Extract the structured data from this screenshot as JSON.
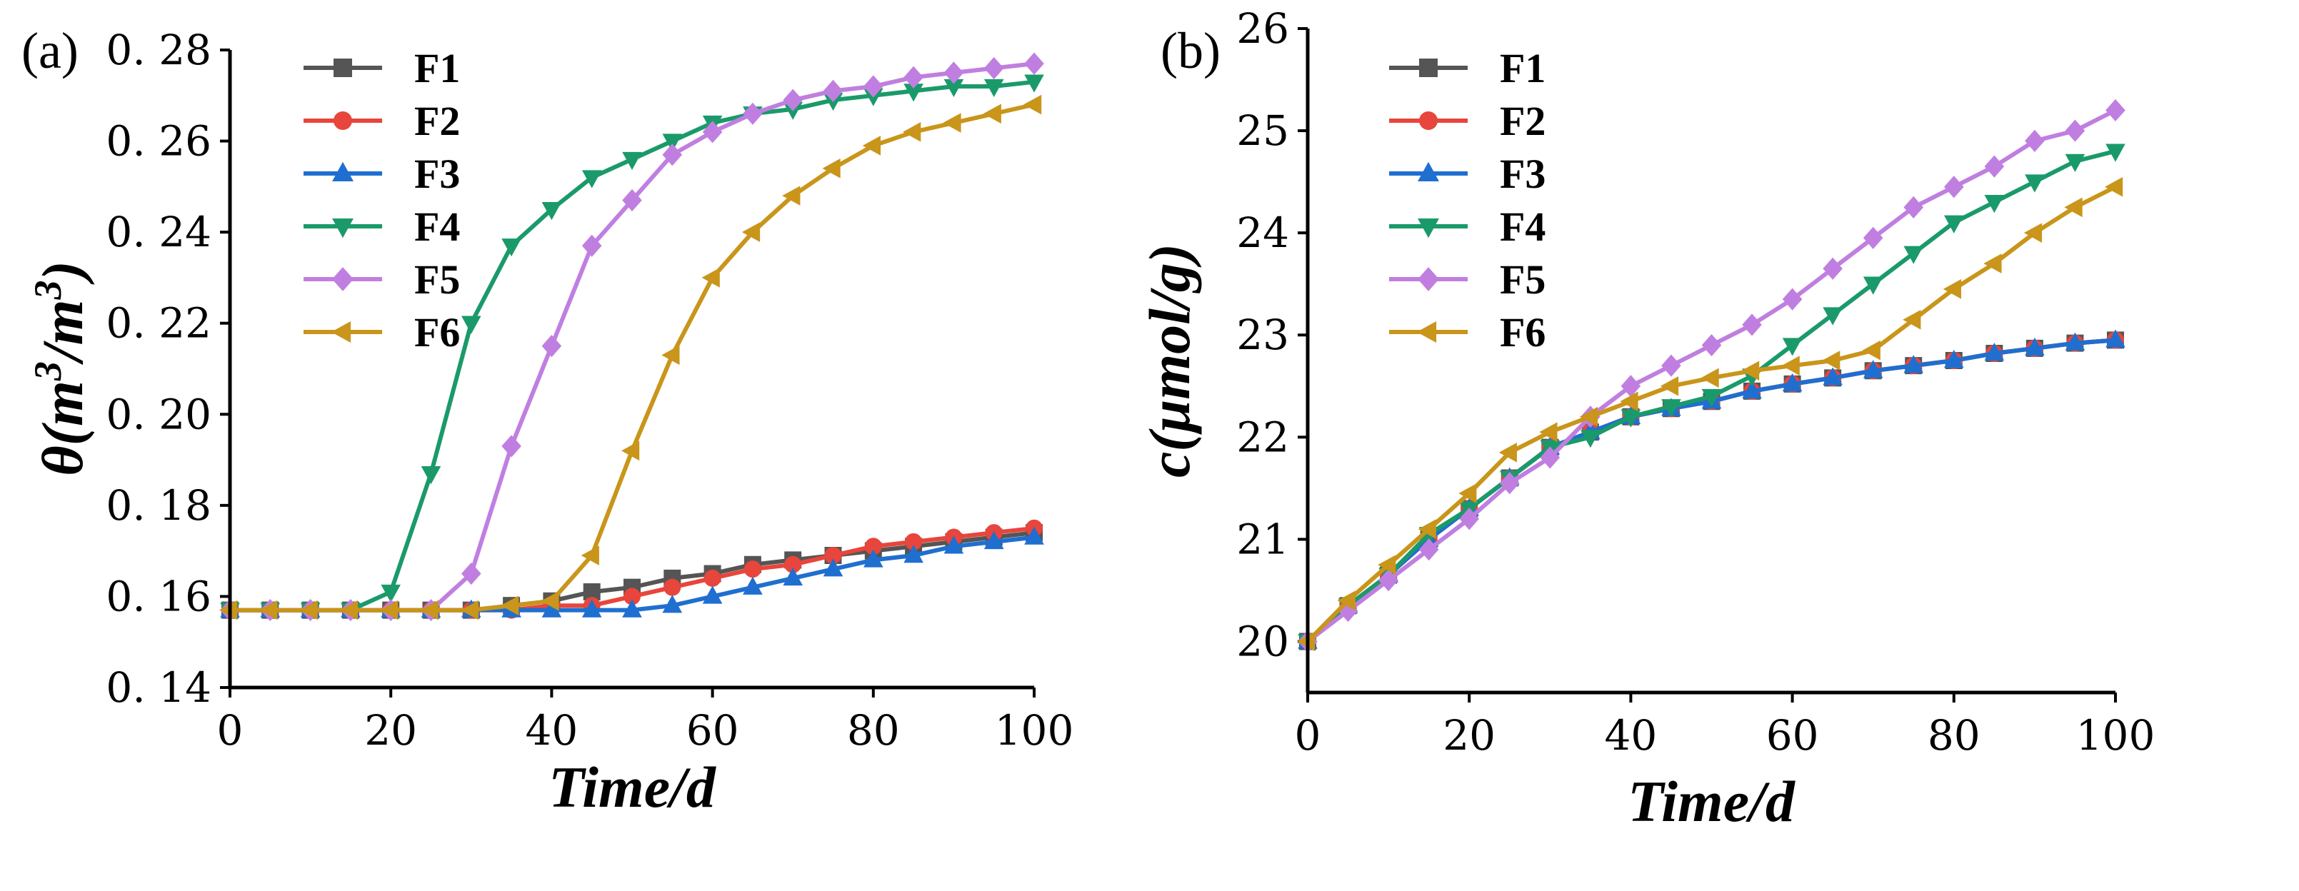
{
  "chart_data": [
    {
      "type": "line",
      "panel_label": "(a)",
      "xlabel": "Time/d",
      "ylabel_base": "θ(m",
      "ylabel_sup1": "3",
      "ylabel_mid": "/m",
      "ylabel_sup2": "3",
      "ylabel_end": ")",
      "xlim": [
        0,
        100
      ],
      "ylim": [
        0.14,
        0.28
      ],
      "xticks": [
        0,
        20,
        40,
        60,
        80,
        100
      ],
      "xtick_labels": [
        "0",
        "20",
        "40",
        "60",
        "80",
        "100"
      ],
      "yticks": [
        0.14,
        0.16,
        0.18,
        0.2,
        0.22,
        0.24,
        0.26,
        0.28
      ],
      "ytick_labels": [
        "0. 14",
        "0. 16",
        "0. 18",
        "0. 20",
        "0. 22",
        "0. 24",
        "0. 26",
        "0. 28"
      ],
      "legend_position": "top-left",
      "x": [
        0,
        5,
        10,
        15,
        20,
        25,
        30,
        35,
        40,
        45,
        50,
        55,
        60,
        65,
        70,
        75,
        80,
        85,
        90,
        95,
        100
      ],
      "series": [
        {
          "name": "F1",
          "color": "#555555",
          "marker": "square",
          "values": [
            0.157,
            0.157,
            0.157,
            0.157,
            0.157,
            0.157,
            0.157,
            0.158,
            0.159,
            0.161,
            0.162,
            0.164,
            0.165,
            0.167,
            0.168,
            0.169,
            0.17,
            0.171,
            0.172,
            0.173,
            0.174
          ]
        },
        {
          "name": "F2",
          "color": "#e8453c",
          "marker": "circle",
          "values": [
            0.157,
            0.157,
            0.157,
            0.157,
            0.157,
            0.157,
            0.157,
            0.157,
            0.158,
            0.158,
            0.16,
            0.162,
            0.164,
            0.166,
            0.167,
            0.169,
            0.171,
            0.172,
            0.173,
            0.174,
            0.175
          ]
        },
        {
          "name": "F3",
          "color": "#1f6fd0",
          "marker": "triangle-up",
          "values": [
            0.157,
            0.157,
            0.157,
            0.157,
            0.157,
            0.157,
            0.157,
            0.157,
            0.157,
            0.157,
            0.157,
            0.158,
            0.16,
            0.162,
            0.164,
            0.166,
            0.168,
            0.169,
            0.171,
            0.172,
            0.173
          ]
        },
        {
          "name": "F4",
          "color": "#1a9a6a",
          "marker": "triangle-down",
          "values": [
            0.157,
            0.157,
            0.157,
            0.157,
            0.161,
            0.187,
            0.22,
            0.237,
            0.245,
            0.252,
            0.256,
            0.26,
            0.264,
            0.266,
            0.267,
            0.269,
            0.27,
            0.271,
            0.272,
            0.272,
            0.273
          ]
        },
        {
          "name": "F5",
          "color": "#c07fe0",
          "marker": "diamond",
          "values": [
            0.157,
            0.157,
            0.157,
            0.157,
            0.157,
            0.157,
            0.165,
            0.193,
            0.215,
            0.237,
            0.247,
            0.257,
            0.262,
            0.266,
            0.269,
            0.271,
            0.272,
            0.274,
            0.275,
            0.276,
            0.277
          ]
        },
        {
          "name": "F6",
          "color": "#c9951a",
          "marker": "triangle-left",
          "values": [
            0.157,
            0.157,
            0.157,
            0.157,
            0.157,
            0.157,
            0.157,
            0.158,
            0.159,
            0.169,
            0.192,
            0.213,
            0.23,
            0.24,
            0.248,
            0.254,
            0.259,
            0.262,
            0.264,
            0.266,
            0.268
          ]
        }
      ]
    },
    {
      "type": "line",
      "panel_label": "(b)",
      "xlabel": "Time/d",
      "ylabel": "c(μmol/g)",
      "xlim": [
        0,
        100
      ],
      "ylim": [
        19.5,
        26
      ],
      "xticks": [
        0,
        20,
        40,
        60,
        80,
        100
      ],
      "xtick_labels": [
        "0",
        "20",
        "40",
        "60",
        "80",
        "100"
      ],
      "yticks": [
        20,
        21,
        22,
        23,
        24,
        25,
        26
      ],
      "ytick_labels": [
        "20",
        "21",
        "22",
        "23",
        "24",
        "25",
        "26"
      ],
      "legend_position": "top-left",
      "x": [
        0,
        5,
        10,
        15,
        20,
        25,
        30,
        35,
        40,
        45,
        50,
        55,
        60,
        65,
        70,
        75,
        80,
        85,
        90,
        95,
        100
      ],
      "series": [
        {
          "name": "F1",
          "color": "#555555",
          "marker": "square",
          "values": [
            20.0,
            20.35,
            20.65,
            21.0,
            21.3,
            21.6,
            21.9,
            22.05,
            22.2,
            22.28,
            22.35,
            22.45,
            22.52,
            22.58,
            22.65,
            22.7,
            22.75,
            22.82,
            22.87,
            22.92,
            22.95
          ]
        },
        {
          "name": "F2",
          "color": "#e8453c",
          "marker": "circle",
          "values": [
            20.0,
            20.35,
            20.65,
            21.0,
            21.3,
            21.6,
            21.9,
            22.05,
            22.2,
            22.28,
            22.35,
            22.45,
            22.52,
            22.58,
            22.65,
            22.7,
            22.75,
            22.82,
            22.87,
            22.92,
            22.95
          ]
        },
        {
          "name": "F3",
          "color": "#1f6fd0",
          "marker": "triangle-up",
          "values": [
            20.0,
            20.35,
            20.65,
            21.0,
            21.3,
            21.6,
            21.9,
            22.05,
            22.2,
            22.28,
            22.35,
            22.45,
            22.52,
            22.58,
            22.65,
            22.7,
            22.75,
            22.82,
            22.87,
            22.92,
            22.95
          ]
        },
        {
          "name": "F4",
          "color": "#1a9a6a",
          "marker": "triangle-down",
          "values": [
            20.0,
            20.35,
            20.65,
            21.05,
            21.3,
            21.6,
            21.9,
            22.0,
            22.2,
            22.3,
            22.4,
            22.6,
            22.9,
            23.2,
            23.5,
            23.8,
            24.1,
            24.3,
            24.5,
            24.7,
            24.8
          ]
        },
        {
          "name": "F5",
          "color": "#c07fe0",
          "marker": "diamond",
          "values": [
            20.0,
            20.3,
            20.6,
            20.9,
            21.2,
            21.55,
            21.8,
            22.2,
            22.5,
            22.7,
            22.9,
            23.1,
            23.35,
            23.65,
            23.95,
            24.25,
            24.45,
            24.65,
            24.9,
            25.0,
            25.2
          ]
        },
        {
          "name": "F6",
          "color": "#c9951a",
          "marker": "triangle-left",
          "values": [
            20.0,
            20.4,
            20.75,
            21.1,
            21.45,
            21.85,
            22.05,
            22.2,
            22.35,
            22.5,
            22.58,
            22.65,
            22.7,
            22.75,
            22.85,
            23.15,
            23.45,
            23.7,
            24.0,
            24.25,
            24.45
          ]
        }
      ]
    }
  ]
}
